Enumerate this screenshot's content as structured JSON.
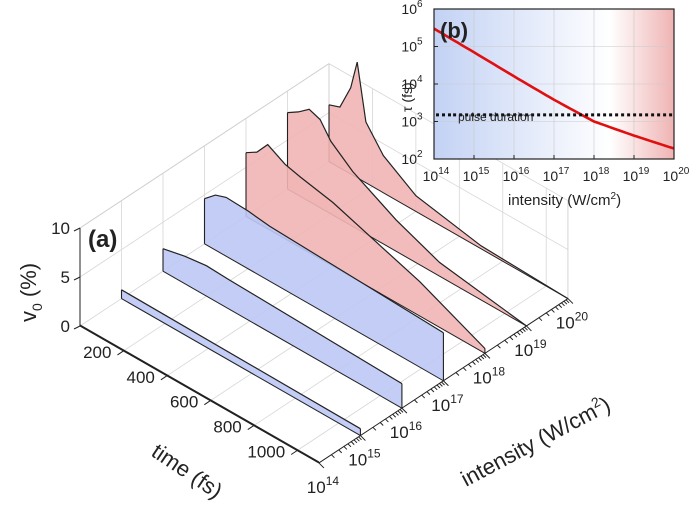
{
  "chart_data": [
    {
      "type": "area",
      "panel_label": "(a)",
      "xlabel": "time (fs)",
      "ylabel_base": "intensity (W/cm",
      "ylabel_sup": "2",
      "ylabel_close": ")",
      "zlabel_base": "v",
      "zlabel_sub": "0",
      "zlabel_close": " (%)",
      "x_ticks": [
        "200",
        "400",
        "600",
        "800",
        "1000"
      ],
      "y_ticks": [
        {
          "base": "10",
          "exp": "14"
        },
        {
          "base": "10",
          "exp": "15"
        },
        {
          "base": "10",
          "exp": "16"
        },
        {
          "base": "10",
          "exp": "17"
        },
        {
          "base": "10",
          "exp": "18"
        },
        {
          "base": "10",
          "exp": "19"
        },
        {
          "base": "10",
          "exp": "20"
        }
      ],
      "z_ticks": [
        "0",
        "5",
        "10"
      ],
      "xlim": [
        0,
        1100
      ],
      "ylim": [
        14,
        20
      ],
      "zlim": [
        0,
        10
      ],
      "colors": {
        "low": "#bcc8f5",
        "high": "#f1b5b5",
        "edge": "#222222"
      },
      "series": [
        {
          "intensity_exp": 14,
          "color": "low",
          "time": [
            0,
            1100
          ],
          "v0": [
            0.1,
            0.1
          ]
        },
        {
          "intensity_exp": 15,
          "color": "low",
          "time": [
            0,
            1100
          ],
          "v0": [
            0.9,
            0.7
          ]
        },
        {
          "intensity_exp": 16,
          "color": "low",
          "time": [
            0,
            100,
            200,
            300,
            1100
          ],
          "v0": [
            2.3,
            2.8,
            3.1,
            3.0,
            2.5
          ]
        },
        {
          "intensity_exp": 17,
          "color": "low",
          "time": [
            0,
            50,
            100,
            200,
            300,
            1100
          ],
          "v0": [
            4.6,
            5.6,
            6.0,
            5.9,
            5.6,
            4.9
          ]
        },
        {
          "intensity_exp": 18,
          "color": "high",
          "time": [
            0,
            50,
            100,
            180,
            250,
            400,
            600,
            800,
            1100
          ],
          "v0": [
            6.5,
            7.2,
            8.6,
            7.6,
            7.2,
            6.5,
            5.0,
            3.5,
            0.5
          ]
        },
        {
          "intensity_exp": 19,
          "color": "high",
          "time": [
            0,
            50,
            100,
            150,
            200,
            300,
            500,
            700,
            1100
          ],
          "v0": [
            7.8,
            8.5,
            9.4,
            9.0,
            7.4,
            5.6,
            3.2,
            1.4,
            0.0
          ]
        },
        {
          "intensity_exp": 20,
          "color": "high",
          "time": [
            0,
            50,
            100,
            130,
            170,
            250,
            400,
            700,
            1100
          ],
          "v0": [
            5.8,
            6.2,
            8.8,
            11.8,
            6.2,
            3.8,
            1.6,
            0.3,
            0.0
          ]
        }
      ]
    },
    {
      "type": "line",
      "panel_label": "(b)",
      "xlabel_base": "intensity (W/cm",
      "xlabel_sup": "2",
      "xlabel_close": ")",
      "ylabel": "τ (fs)",
      "log_x": true,
      "log_y": true,
      "x_ticks": [
        {
          "base": "10",
          "exp": "14"
        },
        {
          "base": "10",
          "exp": "15"
        },
        {
          "base": "10",
          "exp": "16"
        },
        {
          "base": "10",
          "exp": "17"
        },
        {
          "base": "10",
          "exp": "18"
        },
        {
          "base": "10",
          "exp": "19"
        },
        {
          "base": "10",
          "exp": "20"
        }
      ],
      "y_ticks": [
        {
          "base": "10",
          "exp": "2"
        },
        {
          "base": "10",
          "exp": "3"
        },
        {
          "base": "10",
          "exp": "4"
        },
        {
          "base": "10",
          "exp": "5"
        },
        {
          "base": "10",
          "exp": "6"
        }
      ],
      "xlim": [
        100000000000000.0,
        1e+20
      ],
      "ylim": [
        100,
        1000000
      ],
      "series": [
        {
          "color": "#e01010",
          "x": [
            100000000000000.0,
            1000000000000000.0,
            1e+16,
            1e+17,
            1e+18,
            1e+19,
            1e+20
          ],
          "y": [
            300000,
            70000,
            16000,
            3800,
            1000,
            420,
            190
          ]
        },
        {
          "color": "#111111",
          "dash": true,
          "label": "pulse duration",
          "x": [
            100000000000000.0,
            1e+20
          ],
          "y": [
            1500,
            1500
          ]
        }
      ],
      "annotation": "pulse duration",
      "background": {
        "low": "#c4d3f4",
        "high": "#f0b8b8"
      }
    }
  ]
}
